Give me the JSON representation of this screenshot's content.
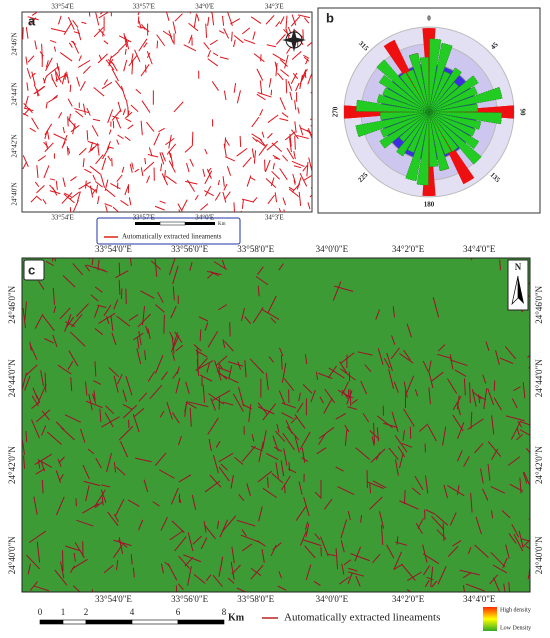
{
  "panel_a": {
    "label": "a",
    "lon_labels": [
      "33°54'E",
      "33°57'E",
      "34°0'E",
      "34°3'E"
    ],
    "lat_labels": [
      "24°46'N",
      "24°44'N",
      "24°42'N",
      "24°40'N"
    ],
    "scale_unit": "Km",
    "legend": "Automatically extracted lineaments"
  },
  "panel_b": {
    "label": "b",
    "directions": [
      "0",
      "45",
      "90",
      "135",
      "180",
      "225",
      "270",
      "315"
    ]
  },
  "panel_c": {
    "label": "c",
    "lon_labels": [
      "33°54'0\"E",
      "33°56'0\"E",
      "33°58'0\"E",
      "34°0'0\"E",
      "34°2'0\"E",
      "34°4'0\"E"
    ],
    "lat_labels": [
      "24°46'0\"N",
      "24°44'0\"N",
      "24°42'0\"N",
      "24°40'0\"N"
    ],
    "north": "N",
    "scale_ticks": [
      "0",
      "1",
      "2",
      "4",
      "6",
      "8"
    ],
    "scale_unit": "Km",
    "legend": "Automatically extracted lineaments",
    "density_high": "High density",
    "density_low": "Low Density"
  }
}
